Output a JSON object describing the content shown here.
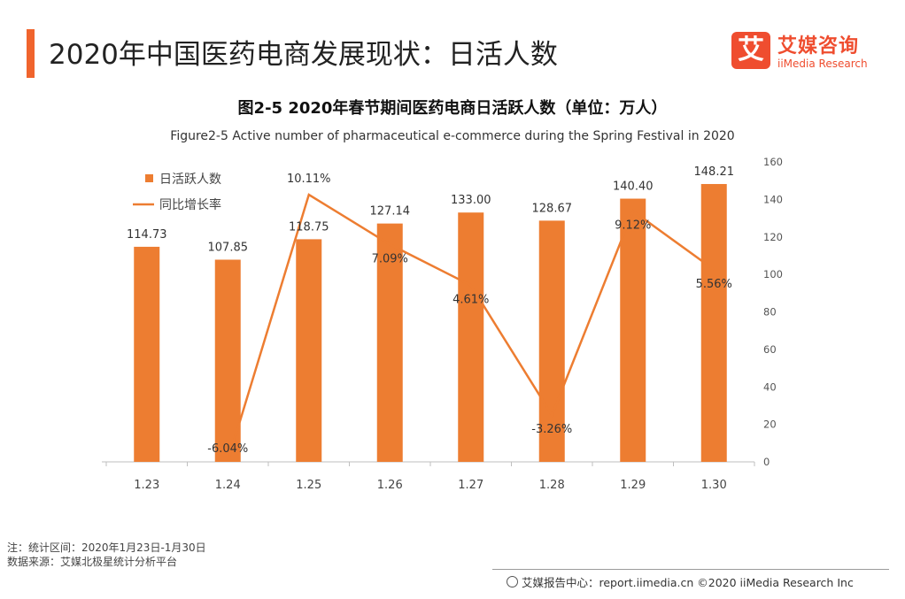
{
  "header": {
    "title": "2020年中国医药电商发展现状：日活人数",
    "brand_cn": "艾媒咨询",
    "brand_en": "iiMedia Research",
    "brand_mark": "艾",
    "accent_color": "#f0642d"
  },
  "chart_data": {
    "type": "bar",
    "title": "图2-5 2020年春节期间医药电商日活跃人数（单位：万人）",
    "subtitle": "Figure2-5 Active number of pharmaceutical e-commerce during the Spring Festival in 2020",
    "categories": [
      "1.23",
      "1.24",
      "1.25",
      "1.26",
      "1.27",
      "1.28",
      "1.29",
      "1.30"
    ],
    "series": [
      {
        "name": "日活跃人数",
        "type": "bar",
        "axis": "right",
        "color": "#ed7d31",
        "values": [
          114.73,
          107.85,
          118.75,
          127.14,
          133.0,
          128.67,
          140.4,
          148.21
        ],
        "labels": [
          "114.73",
          "107.85",
          "118.75",
          "127.14",
          "133.00",
          "128.67",
          "140.40",
          "148.21"
        ]
      },
      {
        "name": "同比增长率",
        "type": "line",
        "axis": "hidden",
        "color": "#ed7d31",
        "values": [
          null,
          -6.04,
          10.11,
          7.09,
          4.61,
          -3.26,
          9.12,
          5.56
        ],
        "labels": [
          "",
          "-6.04%",
          "10.11%",
          "7.09%",
          "4.61%",
          "-3.26%",
          "9.12%",
          "5.56%"
        ]
      }
    ],
    "yaxis_right": {
      "min": 0,
      "max": 160,
      "ticks": [
        0,
        20,
        40,
        60,
        80,
        100,
        120,
        140,
        160
      ]
    },
    "line_axis_range": [
      -6.04,
      10.11
    ],
    "legend_position": "top-left",
    "grid": false
  },
  "footer": {
    "note": "注：统计区间：2020年1月23日-1月30日",
    "source": "数据来源：艾媒北极星统计分析平台",
    "copyright": "艾媒报告中心：report.iimedia.cn  ©2020  iiMedia Research  Inc"
  }
}
